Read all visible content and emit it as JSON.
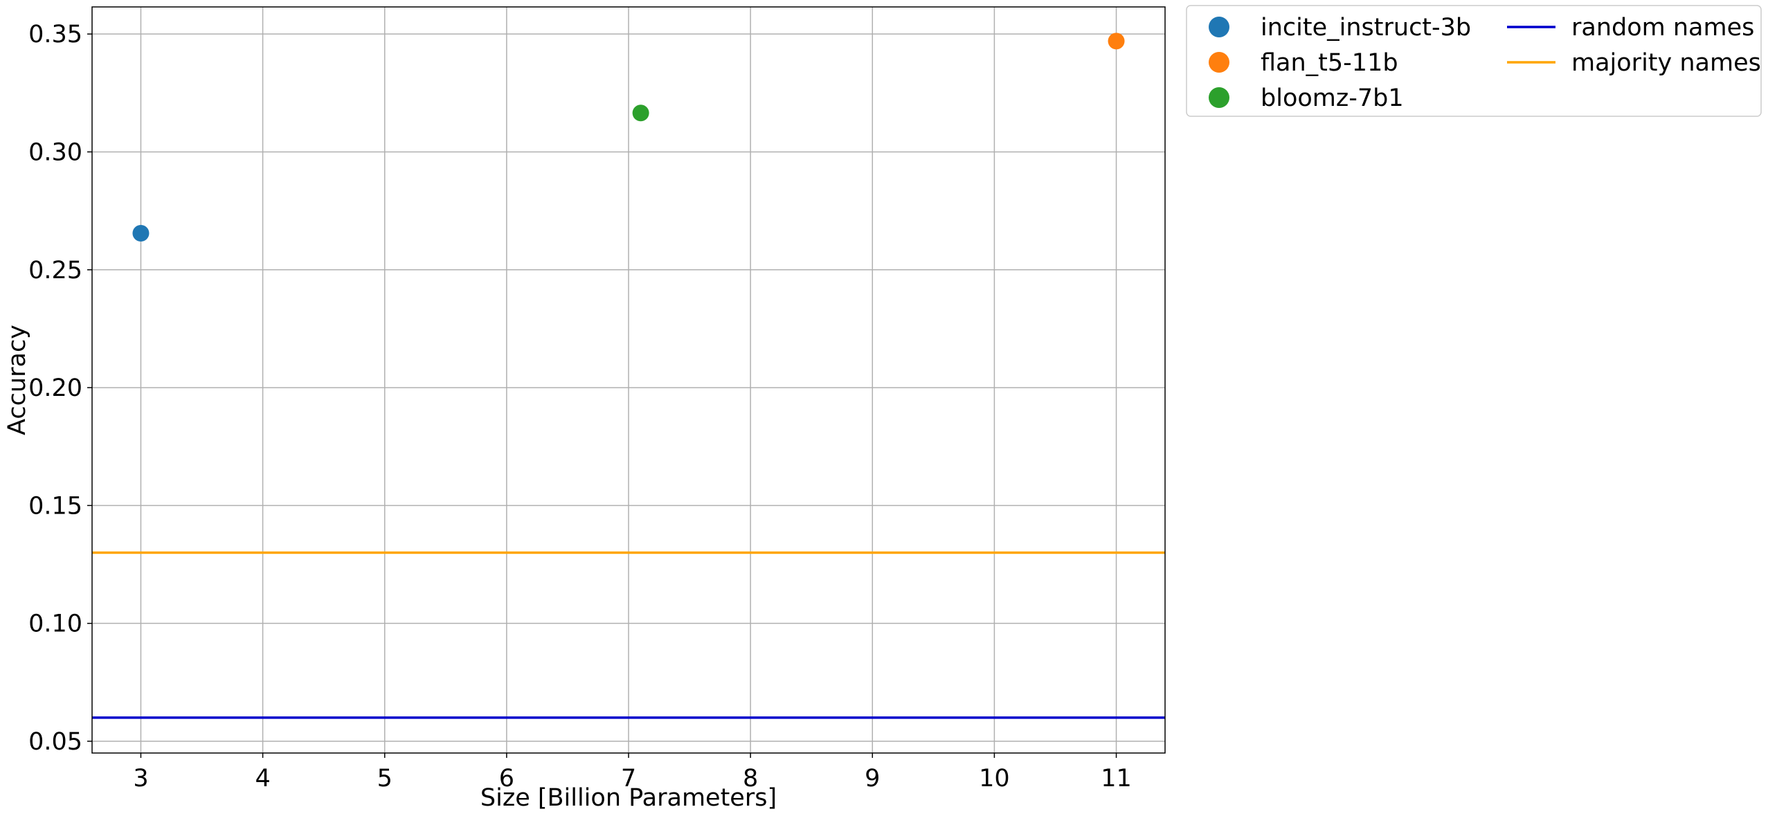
{
  "chart_data": {
    "type": "scatter",
    "title": "",
    "xlabel": "Size [Billion Parameters]",
    "ylabel": "Accuracy",
    "xlim": [
      2.6,
      11.4
    ],
    "ylim": [
      0.045,
      0.3615
    ],
    "xticks": [
      3,
      4,
      5,
      6,
      7,
      8,
      9,
      10,
      11
    ],
    "yticks": [
      0.05,
      0.1,
      0.15,
      0.2,
      0.25,
      0.3,
      0.35
    ],
    "ytick_labels": [
      "0.05",
      "0.10",
      "0.15",
      "0.20",
      "0.25",
      "0.30",
      "0.35"
    ],
    "grid": true,
    "legend_placement": "outside-top-right",
    "legend_columns": 2,
    "series": [
      {
        "name": "incite_instruct-3b",
        "kind": "scatter",
        "color": "#1f77b4",
        "x": [
          3.0
        ],
        "y": [
          0.2655
        ]
      },
      {
        "name": "flan_t5-11b",
        "kind": "scatter",
        "color": "#ff7f0e",
        "x": [
          11.0
        ],
        "y": [
          0.347
        ]
      },
      {
        "name": "bloomz-7b1",
        "kind": "scatter",
        "color": "#2ca02c",
        "x": [
          7.1
        ],
        "y": [
          0.3165
        ]
      },
      {
        "name": "random names",
        "kind": "hline",
        "color": "#0000cc",
        "y": 0.06
      },
      {
        "name": "majority names",
        "kind": "hline",
        "color": "#ffa500",
        "y": 0.13
      }
    ]
  }
}
